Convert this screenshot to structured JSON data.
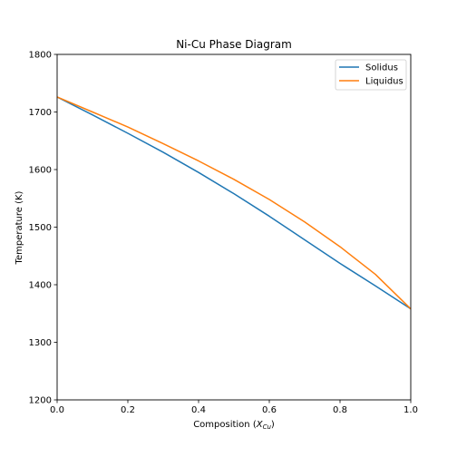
{
  "chart_data": {
    "type": "line",
    "title": "Ni-Cu Phase Diagram",
    "xlabel_main": "Composition (",
    "xlabel_math": "X",
    "xlabel_sub": "Cu",
    "xlabel_tail": ")",
    "ylabel": "Temperature (K)",
    "xlim": [
      0.0,
      1.0
    ],
    "ylim": [
      1200,
      1800
    ],
    "x_ticks": [
      0.0,
      0.2,
      0.4,
      0.6,
      0.8,
      1.0
    ],
    "x_tick_labels": [
      "0.0",
      "0.2",
      "0.4",
      "0.6",
      "0.8",
      "1.0"
    ],
    "y_ticks": [
      1200,
      1300,
      1400,
      1500,
      1600,
      1700,
      1800
    ],
    "y_tick_labels": [
      "1200",
      "1300",
      "1400",
      "1500",
      "1600",
      "1700",
      "1800"
    ],
    "grid": false,
    "legend_position": "top-right",
    "series": [
      {
        "name": "Solidus",
        "color": "#1f77b4",
        "x": [
          0.0,
          0.1,
          0.2,
          0.3,
          0.4,
          0.5,
          0.6,
          0.7,
          0.8,
          0.9,
          1.0
        ],
        "y": [
          1726,
          1695,
          1663,
          1630,
          1595,
          1558,
          1519,
          1478,
          1437,
          1398,
          1358
        ]
      },
      {
        "name": "Liquidus",
        "color": "#ff7f0e",
        "x": [
          0.0,
          0.1,
          0.2,
          0.3,
          0.4,
          0.5,
          0.6,
          0.7,
          0.8,
          0.9,
          1.0
        ],
        "y": [
          1726,
          1700,
          1674,
          1645,
          1615,
          1583,
          1548,
          1509,
          1466,
          1418,
          1358
        ]
      }
    ]
  }
}
